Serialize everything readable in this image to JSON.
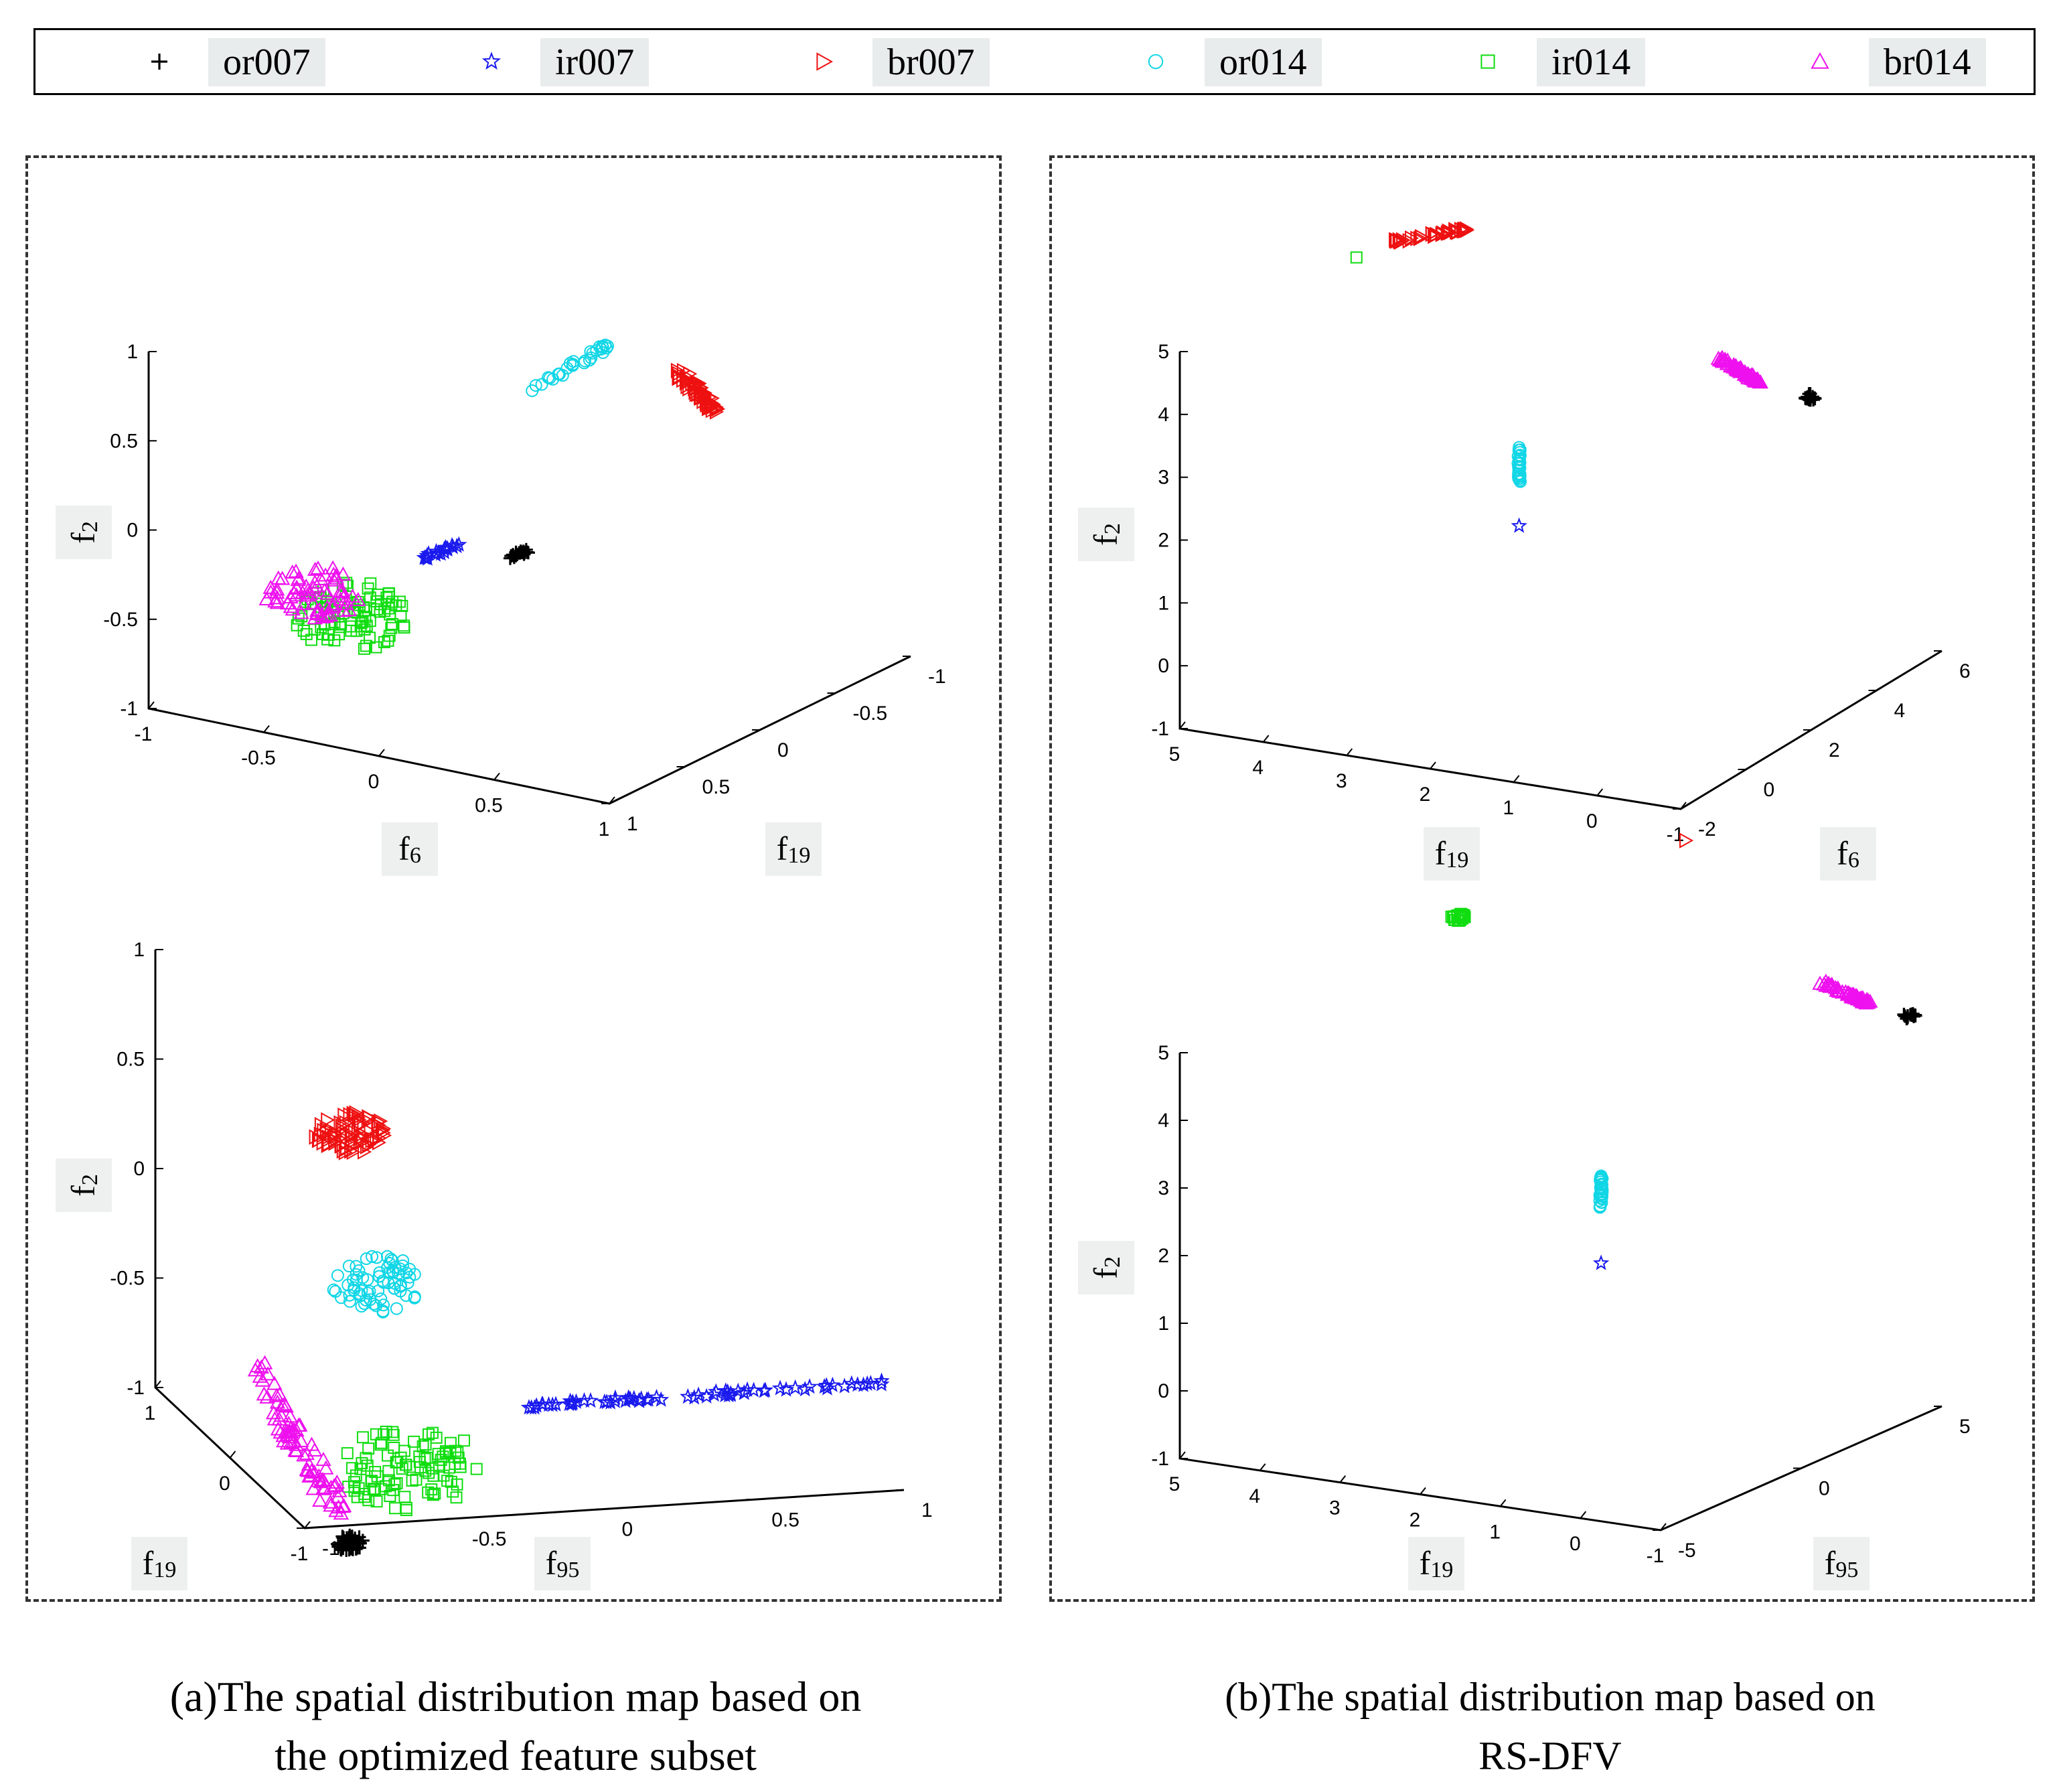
{
  "legend": {
    "items": [
      {
        "label": "or007",
        "marker": "plus",
        "color": "#000000"
      },
      {
        "label": "ir007",
        "marker": "star",
        "color": "#1a1aee"
      },
      {
        "label": "br007",
        "marker": "triangle-right",
        "color": "#ee1111"
      },
      {
        "label": "or014",
        "marker": "circle",
        "color": "#11d6e6"
      },
      {
        "label": "ir014",
        "marker": "square",
        "color": "#11dd11"
      },
      {
        "label": "br014",
        "marker": "triangle-up",
        "color": "#ee11ee"
      }
    ]
  },
  "captions": {
    "a": [
      "(a)The spatial distribution map based on",
      "the optimized feature subset"
    ],
    "b": [
      "(b)The spatial distribution map based on",
      "RS-DFV"
    ]
  },
  "chart_data": [
    {
      "id": "a-top",
      "type": "scatter3d",
      "zlabel": "f",
      "zlabel_sub": "2",
      "xlabel": "f",
      "xlabel_sub": "6",
      "ylabel": "f",
      "ylabel_sub": "19",
      "zticks": [
        "1",
        "0.5",
        "0",
        "-0.5",
        "-1"
      ],
      "xticks": [
        "-1",
        "-0.5",
        "0",
        "0.5",
        "1"
      ],
      "yticks": [
        "1",
        "0.5",
        "0",
        "-0.5",
        "-1"
      ],
      "clusters": [
        {
          "cls": "br007",
          "n": 60,
          "shape": "line",
          "spread": 18,
          "from": {
            "x": 0.75,
            "y": 0.15,
            "z": 1.0
          },
          "to": {
            "x": 1.1,
            "y": 0.45,
            "z": 1.0
          }
        },
        {
          "cls": "or014",
          "n": 30,
          "shape": "line",
          "spread": 12,
          "from": {
            "x": 0.2,
            "y": 0.3,
            "z": 0.82
          },
          "to": {
            "x": 0.42,
            "y": 0.1,
            "z": 1.05
          }
        },
        {
          "cls": "ir007",
          "n": 20,
          "shape": "line",
          "spread": 10,
          "from": {
            "x": -0.1,
            "y": 0.55,
            "z": -0.1
          },
          "to": {
            "x": 0.05,
            "y": 0.45,
            "z": 0.0
          }
        },
        {
          "cls": "or007",
          "n": 20,
          "shape": "line",
          "spread": 10,
          "from": {
            "x": 0.1,
            "y": 0.3,
            "z": -0.15
          },
          "to": {
            "x": 0.2,
            "y": 0.3,
            "z": -0.08
          }
        },
        {
          "cls": "ir014",
          "n": 90,
          "shape": "blob",
          "spread": 75,
          "center": {
            "x": -0.35,
            "y": 0.65,
            "z": -0.45
          }
        },
        {
          "cls": "br014",
          "n": 70,
          "shape": "blob",
          "spread": 60,
          "center": {
            "x": -0.55,
            "y": 0.6,
            "z": -0.4
          }
        }
      ]
    },
    {
      "id": "a-bottom",
      "type": "scatter3d",
      "zlabel": "f",
      "zlabel_sub": "2",
      "xlabel": "f",
      "xlabel_sub": "19",
      "ylabel": "f",
      "ylabel_sub": "95",
      "zticks": [
        "1",
        "0.5",
        "0",
        "-0.5",
        "-1"
      ],
      "xticks": [
        "1",
        "0",
        "-1"
      ],
      "yticks": [
        "-1",
        "-0.5",
        "0",
        "0.5",
        "1"
      ],
      "clusters": [
        {
          "cls": "br007",
          "n": 80,
          "shape": "blob",
          "spread": 45,
          "center": {
            "x": 0.0,
            "y": -0.6,
            "z": 0.45
          }
        },
        {
          "cls": "or014",
          "n": 70,
          "shape": "blob",
          "spread": 60,
          "center": {
            "x": 0.0,
            "y": -0.5,
            "z": -0.25
          }
        },
        {
          "cls": "ir007",
          "n": 70,
          "shape": "line",
          "spread": 12,
          "from": {
            "x": 0.0,
            "y": 0.0,
            "z": -0.85
          },
          "to": {
            "x": 0.0,
            "y": 1.2,
            "z": -0.85
          }
        },
        {
          "cls": "ir014",
          "n": 100,
          "shape": "blob",
          "spread": 90,
          "center": {
            "x": 0.0,
            "y": -0.4,
            "z": -1.1
          }
        },
        {
          "cls": "br014",
          "n": 80,
          "shape": "line",
          "spread": 35,
          "from": {
            "x": 0.5,
            "y": -0.8,
            "z": -0.75
          },
          "to": {
            "x": -0.3,
            "y": -0.7,
            "z": -1.2
          }
        },
        {
          "cls": "or007",
          "n": 50,
          "shape": "blob",
          "spread": 18,
          "center": {
            "x": -0.8,
            "y": -0.8,
            "z": -1.15
          }
        }
      ]
    },
    {
      "id": "b-top",
      "type": "scatter3d",
      "zlabel": "f",
      "zlabel_sub": "2",
      "xlabel": "f",
      "xlabel_sub": "19",
      "ylabel": "f",
      "ylabel_sub": "6",
      "zticks": [
        "5",
        "4",
        "3",
        "2",
        "1",
        "0",
        "-1"
      ],
      "xticks": [
        "5",
        "4",
        "3",
        "2",
        "1",
        "0",
        "-1"
      ],
      "yticks": [
        "-2",
        "0",
        "2",
        "4",
        "6"
      ],
      "clusters": [
        {
          "cls": "br007",
          "n": 40,
          "shape": "line",
          "spread": 8,
          "from": {
            "x": 4.4,
            "y": 3.0,
            "z": 5.3
          },
          "to": {
            "x": 3.7,
            "y": 3.5,
            "z": 5.5
          }
        },
        {
          "cls": "ir014",
          "n": 1,
          "shape": "point",
          "at": {
            "x": 4.8,
            "y": 2.9,
            "z": 5.0
          }
        },
        {
          "cls": "br014",
          "n": 60,
          "shape": "line",
          "spread": 8,
          "from": {
            "x": 0.5,
            "y": 3.0,
            "z": 4.3
          },
          "to": {
            "x": 0.0,
            "y": 3.0,
            "z": 4.0
          }
        },
        {
          "cls": "or007",
          "n": 15,
          "shape": "blob",
          "spread": 8,
          "center": {
            "x": -0.6,
            "y": 3.0,
            "z": 3.9
          }
        },
        {
          "cls": "or014",
          "n": 30,
          "shape": "line",
          "spread": 4,
          "from": {
            "x": 2.5,
            "y": 2.0,
            "z": 2.2
          },
          "to": {
            "x": 2.5,
            "y": 2.0,
            "z": 2.8
          }
        },
        {
          "cls": "ir007",
          "n": 1,
          "shape": "point",
          "at": {
            "x": 2.5,
            "y": 2.0,
            "z": 1.5
          }
        }
      ]
    },
    {
      "id": "b-bottom",
      "type": "scatter3d",
      "zlabel": "f",
      "zlabel_sub": "2",
      "xlabel": "f",
      "xlabel_sub": "19",
      "ylabel": "f",
      "ylabel_sub": "95",
      "zticks": [
        "5",
        "4",
        "3",
        "2",
        "1",
        "0",
        "-1"
      ],
      "xticks": [
        "5",
        "4",
        "3",
        "2",
        "1",
        "0",
        "-1"
      ],
      "yticks": [
        "-5",
        "0",
        "5"
      ],
      "clusters": [
        {
          "cls": "br007",
          "n": 1,
          "shape": "point",
          "at": {
            "x": 2.2,
            "y": 5.0,
            "z": 6.8
          }
        },
        {
          "cls": "ir014",
          "n": 20,
          "shape": "blob",
          "spread": 10,
          "center": {
            "x": 4.0,
            "y": 2.0,
            "z": 5.9
          }
        },
        {
          "cls": "br014",
          "n": 60,
          "shape": "line",
          "spread": 8,
          "from": {
            "x": 0.5,
            "y": 5.0,
            "z": 5.0
          },
          "to": {
            "x": -0.1,
            "y": 5.0,
            "z": 4.8
          }
        },
        {
          "cls": "or007",
          "n": 15,
          "shape": "blob",
          "spread": 8,
          "center": {
            "x": -0.6,
            "y": 5.0,
            "z": 4.7
          }
        },
        {
          "cls": "or014",
          "n": 30,
          "shape": "line",
          "spread": 4,
          "from": {
            "x": 2.2,
            "y": 2.0,
            "z": 1.9
          },
          "to": {
            "x": 2.2,
            "y": 2.0,
            "z": 2.4
          }
        },
        {
          "cls": "ir007",
          "n": 1,
          "shape": "point",
          "at": {
            "x": 2.2,
            "y": 2.0,
            "z": 1.1
          }
        }
      ]
    }
  ]
}
